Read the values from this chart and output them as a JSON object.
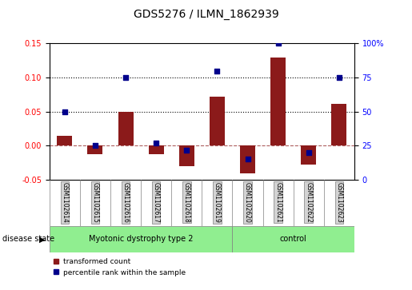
{
  "title": "GDS5276 / ILMN_1862939",
  "samples": [
    "GSM1102614",
    "GSM1102615",
    "GSM1102616",
    "GSM1102617",
    "GSM1102618",
    "GSM1102619",
    "GSM1102620",
    "GSM1102621",
    "GSM1102622",
    "GSM1102623"
  ],
  "transformed_count": [
    0.015,
    -0.013,
    0.05,
    -0.012,
    -0.03,
    0.072,
    -0.04,
    0.13,
    -0.028,
    0.062
  ],
  "percentile_rank": [
    50,
    25,
    75,
    27,
    22,
    80,
    15,
    100,
    20,
    75
  ],
  "groups": [
    {
      "label": "Myotonic dystrophy type 2",
      "start": 0,
      "end": 6,
      "color": "#90EE90"
    },
    {
      "label": "control",
      "start": 6,
      "end": 10,
      "color": "#90EE90"
    }
  ],
  "ylim_left": [
    -0.05,
    0.15
  ],
  "ylim_right": [
    0,
    100
  ],
  "yticks_left": [
    -0.05,
    0.0,
    0.05,
    0.1,
    0.15
  ],
  "yticks_right": [
    0,
    25,
    50,
    75,
    100
  ],
  "bar_color": "#8B1A1A",
  "dot_color": "#00008B",
  "zero_line_color": "#8B1A1A",
  "grid_color": "black",
  "disease_state_label": "disease state",
  "legend_bar": "transformed count",
  "legend_dot": "percentile rank within the sample"
}
